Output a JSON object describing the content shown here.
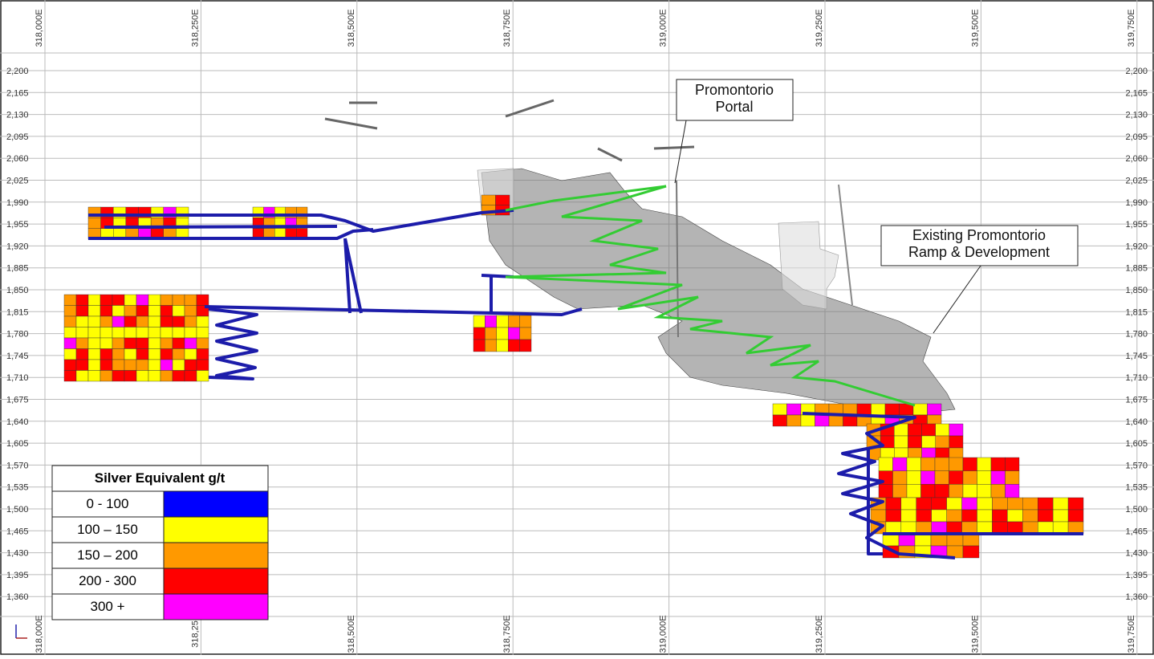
{
  "section": {
    "top_x_labels": [
      "318,000E",
      "318,250E",
      "318,500E",
      "318,750E",
      "319,000E",
      "319,250E",
      "319,500E",
      "319,750E"
    ],
    "bottom_x_labels": [
      "318,000E",
      "318,25",
      "318,500E",
      "318,750E",
      "319,000E",
      "319,250E",
      "319,500E",
      "319,750E"
    ],
    "y_labels": [
      "2,200",
      "2,165",
      "2,130",
      "2,095",
      "2,060",
      "2,025",
      "1,990",
      "1,955",
      "1,920",
      "1,885",
      "1,850",
      "1,815",
      "1,780",
      "1,745",
      "1,710",
      "1,675",
      "1,640",
      "1,605",
      "1,570",
      "1,535",
      "1,500",
      "1,465",
      "1,430",
      "1,395",
      "1,360"
    ]
  },
  "callouts": [
    {
      "lines": [
        "Promontorio",
        "Portal"
      ]
    },
    {
      "lines": [
        "Existing Promontorio",
        "Ramp & Development"
      ]
    }
  ],
  "legend": {
    "title": "Silver Equivalent g/t",
    "rows": [
      {
        "label": "0 - 100",
        "color": "#0000ff"
      },
      {
        "label": "100 – 150",
        "color": "#ffff00"
      },
      {
        "label": "150 – 200",
        "color": "#ff9900"
      },
      {
        "label": "200 - 300",
        "color": "#ff0000"
      },
      {
        "label": "300 +",
        "color": "#ff00ff"
      }
    ]
  }
}
